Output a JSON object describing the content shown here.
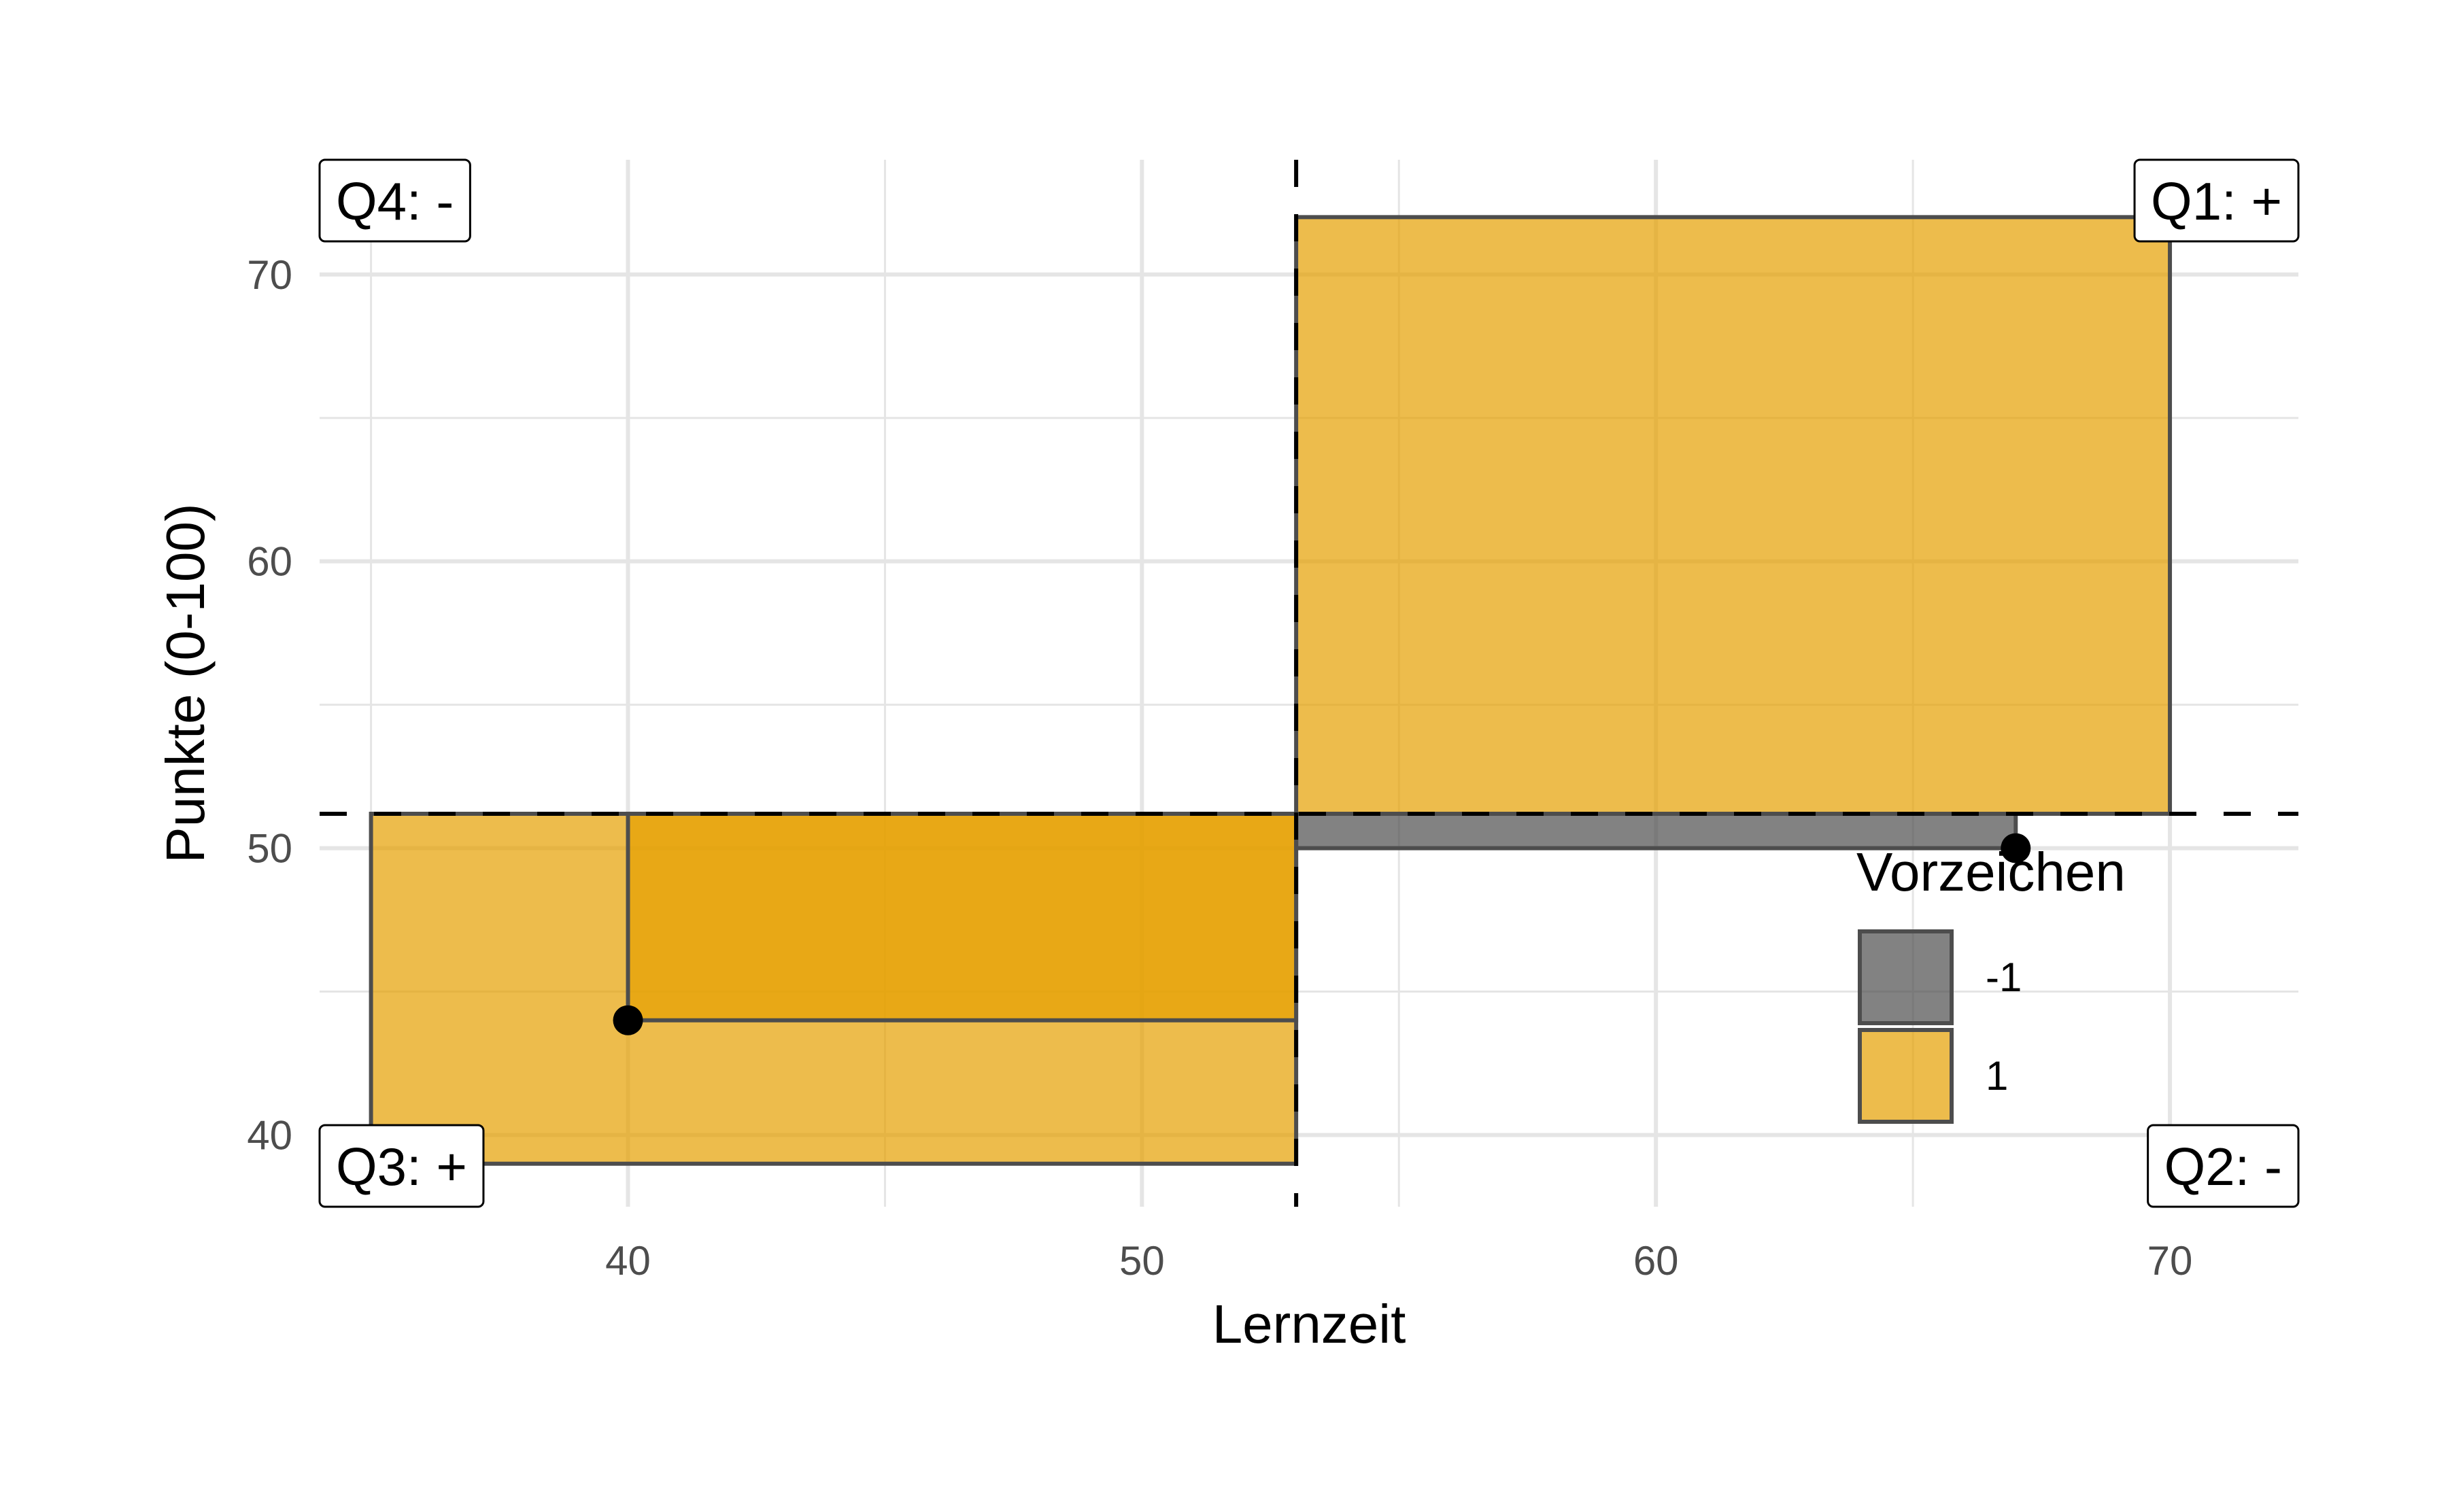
{
  "chart_data": {
    "type": "scatter",
    "title": "",
    "xlabel": "Lernzeit",
    "ylabel": "Punkte (0-100)",
    "xlim": [
      34,
      72.5
    ],
    "ylim": [
      37.5,
      74
    ],
    "x_ticks": [
      40,
      50,
      60,
      70
    ],
    "y_ticks": [
      40,
      50,
      60,
      70
    ],
    "x_tick_labels": [
      "40",
      "50",
      "60",
      "70"
    ],
    "y_tick_labels": [
      "40",
      "50",
      "60",
      "70"
    ],
    "grid": true,
    "mean_x": 53,
    "mean_y": 51.2,
    "points": [
      {
        "x": 35,
        "y": 39
      },
      {
        "x": 40,
        "y": 44
      },
      {
        "x": 67,
        "y": 50
      },
      {
        "x": 70,
        "y": 72
      }
    ],
    "rectangles": [
      {
        "x1": 35,
        "x2": 53,
        "y1": 39,
        "y2": 51.2,
        "sign": "1"
      },
      {
        "x1": 40,
        "x2": 53,
        "y1": 44,
        "y2": 51.2,
        "sign": "1"
      },
      {
        "x1": 53,
        "x2": 67,
        "y1": 50,
        "y2": 51.2,
        "sign": "-1"
      },
      {
        "x1": 53,
        "x2": 70,
        "y1": 51.2,
        "y2": 72,
        "sign": "1"
      }
    ],
    "quadrant_labels": {
      "q1": "Q1: +",
      "q2": "Q2: -",
      "q3": "Q3: +",
      "q4": "Q4: -"
    },
    "legend": {
      "title": "Vorzeichen",
      "placement": "inside-bottom-right",
      "items": [
        {
          "label": "-1",
          "color": "#4d4d4d"
        },
        {
          "label": "1",
          "color": "#E69F00"
        }
      ]
    },
    "colors": {
      "positive": "#E69F00",
      "negative": "#4d4d4d",
      "outline": "#4d4d4d",
      "grid": "#e5e5e5",
      "point": "#000000"
    }
  }
}
